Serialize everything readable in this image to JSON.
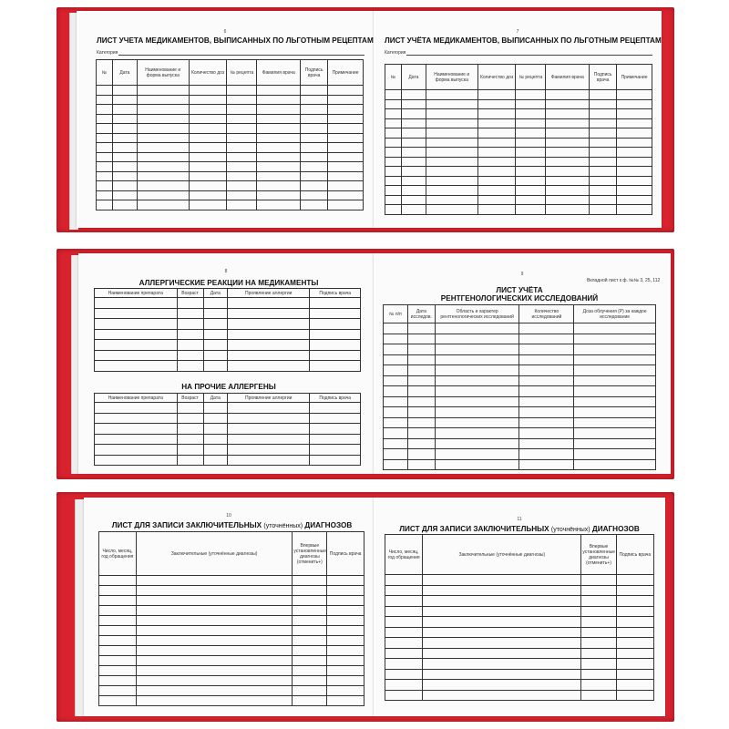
{
  "spreads": [
    {
      "left": {
        "page": "6",
        "title": "ЛИСТ УЧЕТА МЕДИКАМЕНТОВ, ВЫПИСАННЫХ ПО ЛЬГОТНЫМ РЕЦЕПТАМ",
        "category_label": "Категория",
        "columns": [
          "№",
          "Дата",
          "Наименование и форма выпуска",
          "Количество доз",
          "№ рецепта",
          "Фамилия врача",
          "Подпись врача",
          "Примечание"
        ]
      },
      "right": {
        "page": "7",
        "title": "ЛИСТ УЧЁТА МЕДИКАМЕНТОВ, ВЫПИСАННЫХ ПО ЛЬГОТНЫМ РЕЦЕПТАМ",
        "category_label": "Категория",
        "columns": [
          "№",
          "Дата",
          "Наименование и форма выпуска",
          "Количество доз",
          "№ рецепта",
          "Фамилия врача",
          "Подпись врача",
          "Примечание"
        ]
      }
    },
    {
      "left": {
        "page": "8",
        "title": "АЛЛЕРГИЧЕСКИЕ РЕАКЦИИ НА МЕДИКАМЕНТЫ",
        "columns": [
          "Наименование препарата",
          "Возраст",
          "Дата",
          "Проявление аллергии",
          "Подпись врача"
        ],
        "title2": "НА ПРОЧИЕ АЛЛЕРГЕНЫ",
        "columns2": [
          "Наименование препарата",
          "Возраст",
          "Дата",
          "Проявление аллергии",
          "Подпись врача"
        ]
      },
      "right": {
        "page": "9",
        "note": "Вкладной лист к ф. №№ 3, 25, 112",
        "title": "ЛИСТ УЧЁТА",
        "title_line2": "РЕНТГЕНОЛОГИЧЕСКИХ ИССЛЕДОВАНИЙ",
        "columns": [
          "№ п/п",
          "Дата исследов.",
          "Область и характер рентгенологических исследований",
          "Количество исследований",
          "Доза облучения (Р) за каждое исследование"
        ]
      }
    },
    {
      "left": {
        "page": "10",
        "title": "ЛИСТ ДЛЯ ЗАПИСИ ЗАКЛЮЧИТЕЛЬНЫХ",
        "title_small": "(уточнённых)",
        "title_end": "ДИАГНОЗОВ",
        "columns": [
          "Число, месяц, год обращения",
          "Заключительные (уточнённые диагнозы)",
          "Впервые установленные диагнозы (отменить+)",
          "Подпись врача"
        ]
      },
      "right": {
        "page": "11",
        "title": "ЛИСТ ДЛЯ ЗАПИСИ ЗАКЛЮЧИТЕЛЬНЫХ",
        "title_small": "(уточнённых)",
        "title_end": "ДИАГНОЗОВ",
        "columns": [
          "Число, месяц, год обращения",
          "Заключительные (уточнённые диагнозы)",
          "Впервые установленные диагнозы (отменить+)",
          "Подпись врача"
        ]
      }
    }
  ],
  "colors": {
    "cover": "#d8222e",
    "page": "#fbfbfb",
    "line": "#333333"
  }
}
